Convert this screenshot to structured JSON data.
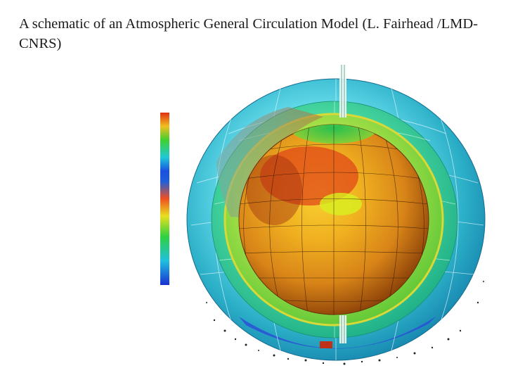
{
  "caption": {
    "text": "A schematic of an Atmospheric General Circulation Model (L. Fairhead /LMD-CNRS)"
  },
  "colorbar": {
    "colors": [
      "#e05818",
      "#f0a020",
      "#c8d820",
      "#30d030",
      "#20c8c8",
      "#1e78e8",
      "#1a1ad0"
    ]
  },
  "colors": {
    "shell_outer": "#28b8c8",
    "shell_middle": "#40d088",
    "shell_inner": "#98e040",
    "shell_inner_edge": "#e0d838",
    "globe_light": "#f0c020",
    "globe_mid": "#e09018",
    "globe_dark": "#8a3808",
    "hot_spot": "#e04818",
    "polar_cap": "#20b050",
    "bottom_cold": "#2040d8"
  }
}
